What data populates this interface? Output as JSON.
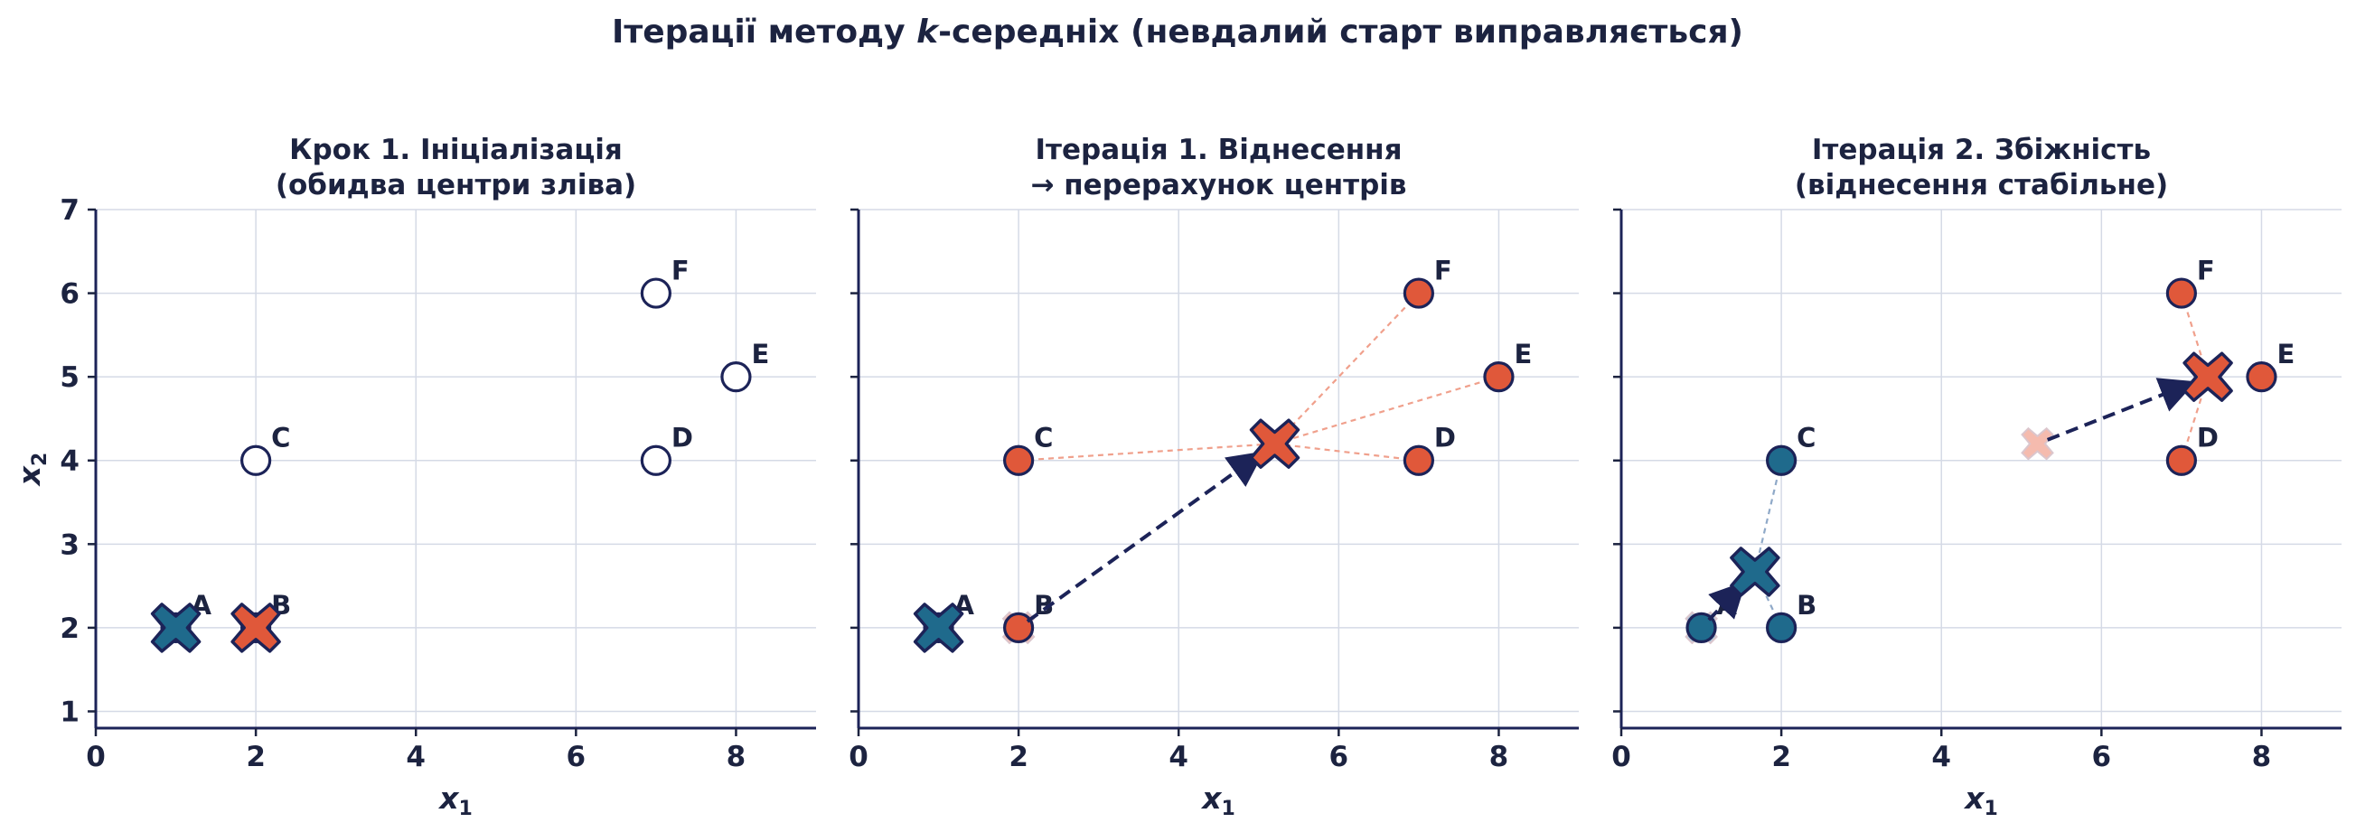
{
  "title_prefix": "Ітерації методу ",
  "title_k": "k",
  "title_suffix": "-середніх (невдалий старт виправляється)",
  "colors": {
    "ink": "#1c2340",
    "navy": "#1c2358",
    "blue": "#1f6a8c",
    "orange": "#e0583a",
    "faded_blue": "#a9c3d6",
    "faded_orange": "#f4b4a6",
    "hollow": "#ffffff"
  },
  "chart_data": [
    {
      "type": "scatter",
      "title_lines": [
        "Крок 1. Ініціалізація",
        "(обидва центри зліва)"
      ],
      "xlabel": "x",
      "xlabel_sub": "1",
      "ylabel": "x",
      "ylabel_sub": "2",
      "xlim": [
        0,
        9
      ],
      "ylim": [
        0.8,
        7
      ],
      "xticks": [
        0,
        2,
        4,
        6,
        8
      ],
      "yticks": [
        1,
        2,
        3,
        4,
        5,
        6,
        7
      ],
      "show_yticklabels": true,
      "grid": true,
      "points": [
        {
          "label": "A",
          "x": 1,
          "y": 2,
          "cluster": "none"
        },
        {
          "label": "B",
          "x": 2,
          "y": 2,
          "cluster": "none"
        },
        {
          "label": "C",
          "x": 2,
          "y": 4,
          "cluster": "none"
        },
        {
          "label": "D",
          "x": 7,
          "y": 4,
          "cluster": "none"
        },
        {
          "label": "E",
          "x": 8,
          "y": 5,
          "cluster": "none"
        },
        {
          "label": "F",
          "x": 7,
          "y": 6,
          "cluster": "none"
        }
      ],
      "assignment_lines": [],
      "old_centroids": [],
      "centroids": [
        {
          "cluster": "blue",
          "x": 1,
          "y": 2
        },
        {
          "cluster": "orange",
          "x": 2,
          "y": 2
        }
      ],
      "arrows": []
    },
    {
      "type": "scatter",
      "title_lines": [
        "Ітерація 1. Віднесення",
        "→ перерахунок центрів"
      ],
      "xlabel": "x",
      "xlabel_sub": "1",
      "ylabel": "",
      "ylabel_sub": "",
      "xlim": [
        0,
        9
      ],
      "ylim": [
        0.8,
        7
      ],
      "xticks": [
        0,
        2,
        4,
        6,
        8
      ],
      "yticks": [
        1,
        2,
        3,
        4,
        5,
        6,
        7
      ],
      "show_yticklabels": false,
      "grid": true,
      "points": [
        {
          "label": "A",
          "x": 1,
          "y": 2,
          "cluster": "blue"
        },
        {
          "label": "B",
          "x": 2,
          "y": 2,
          "cluster": "orange"
        },
        {
          "label": "C",
          "x": 2,
          "y": 4,
          "cluster": "orange"
        },
        {
          "label": "D",
          "x": 7,
          "y": 4,
          "cluster": "orange"
        },
        {
          "label": "E",
          "x": 8,
          "y": 5,
          "cluster": "orange"
        },
        {
          "label": "F",
          "x": 7,
          "y": 6,
          "cluster": "orange"
        }
      ],
      "assignment_lines": [
        {
          "from": [
            2,
            4
          ],
          "to": [
            5.2,
            4.2
          ],
          "cluster": "orange"
        },
        {
          "from": [
            7,
            4
          ],
          "to": [
            5.2,
            4.2
          ],
          "cluster": "orange"
        },
        {
          "from": [
            8,
            5
          ],
          "to": [
            5.2,
            4.2
          ],
          "cluster": "orange"
        },
        {
          "from": [
            7,
            6
          ],
          "to": [
            5.2,
            4.2
          ],
          "cluster": "orange"
        }
      ],
      "old_centroids": [
        {
          "cluster": "orange",
          "x": 2,
          "y": 2
        }
      ],
      "centroids": [
        {
          "cluster": "blue",
          "x": 1,
          "y": 2
        },
        {
          "cluster": "orange",
          "x": 5.2,
          "y": 4.2
        }
      ],
      "arrows": [
        {
          "from": [
            2,
            2
          ],
          "to": [
            5.2,
            4.2
          ]
        }
      ]
    },
    {
      "type": "scatter",
      "title_lines": [
        "Ітерація 2. Збіжність",
        "(віднесення стабільне)"
      ],
      "xlabel": "x",
      "xlabel_sub": "1",
      "ylabel": "",
      "ylabel_sub": "",
      "xlim": [
        0,
        9
      ],
      "ylim": [
        0.8,
        7
      ],
      "xticks": [
        0,
        2,
        4,
        6,
        8
      ],
      "yticks": [
        1,
        2,
        3,
        4,
        5,
        6,
        7
      ],
      "show_yticklabels": false,
      "grid": true,
      "points": [
        {
          "label": "A",
          "x": 1,
          "y": 2,
          "cluster": "blue"
        },
        {
          "label": "B",
          "x": 2,
          "y": 2,
          "cluster": "blue"
        },
        {
          "label": "C",
          "x": 2,
          "y": 4,
          "cluster": "blue"
        },
        {
          "label": "D",
          "x": 7,
          "y": 4,
          "cluster": "orange"
        },
        {
          "label": "E",
          "x": 8,
          "y": 5,
          "cluster": "orange"
        },
        {
          "label": "F",
          "x": 7,
          "y": 6,
          "cluster": "orange"
        }
      ],
      "assignment_lines": [
        {
          "from": [
            2,
            4
          ],
          "to": [
            1.67,
            2.67
          ],
          "cluster": "blue"
        },
        {
          "from": [
            2,
            2
          ],
          "to": [
            1.67,
            2.67
          ],
          "cluster": "blue"
        },
        {
          "from": [
            7,
            6
          ],
          "to": [
            7.33,
            5
          ],
          "cluster": "orange"
        },
        {
          "from": [
            7,
            4
          ],
          "to": [
            7.33,
            5
          ],
          "cluster": "orange"
        }
      ],
      "old_centroids": [
        {
          "cluster": "blue",
          "x": 1,
          "y": 2
        },
        {
          "cluster": "orange",
          "x": 5.2,
          "y": 4.2
        }
      ],
      "centroids": [
        {
          "cluster": "blue",
          "x": 1.67,
          "y": 2.67
        },
        {
          "cluster": "orange",
          "x": 7.33,
          "y": 5
        }
      ],
      "arrows": [
        {
          "from": [
            1,
            2
          ],
          "to": [
            1.67,
            2.67
          ]
        },
        {
          "from": [
            5.2,
            4.2
          ],
          "to": [
            7.33,
            5
          ]
        }
      ]
    }
  ]
}
